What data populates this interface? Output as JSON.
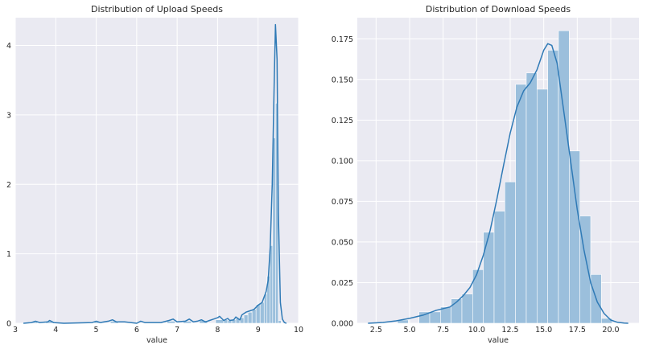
{
  "chart_data": [
    {
      "type": "histogram",
      "title": "Distribution of Upload Speeds",
      "xlabel": "value",
      "ylabel": "",
      "xlim": [
        3,
        10
      ],
      "ylim": [
        0,
        4.4
      ],
      "xticks": [
        3,
        4,
        5,
        6,
        7,
        8,
        9,
        10
      ],
      "yticks": [
        0,
        1,
        2,
        3,
        4
      ],
      "grid": true,
      "bar_color": "#9bbfdc",
      "line_color": "#2f7ab6",
      "bins": [
        {
          "x0": 3.35,
          "x1": 3.55,
          "y": 0.02
        },
        {
          "x0": 3.75,
          "x1": 3.95,
          "y": 0.03
        },
        {
          "x0": 4.95,
          "x1": 5.15,
          "y": 0.02
        },
        {
          "x0": 5.35,
          "x1": 5.55,
          "y": 0.03
        },
        {
          "x0": 6.75,
          "x1": 6.95,
          "y": 0.03
        },
        {
          "x0": 7.15,
          "x1": 7.35,
          "y": 0.03
        },
        {
          "x0": 7.55,
          "x1": 7.75,
          "y": 0.04
        },
        {
          "x0": 7.95,
          "x1": 8.15,
          "y": 0.05
        },
        {
          "x0": 8.15,
          "x1": 8.25,
          "y": 0.05
        },
        {
          "x0": 8.25,
          "x1": 8.35,
          "y": 0.04
        },
        {
          "x0": 8.35,
          "x1": 8.45,
          "y": 0.05
        },
        {
          "x0": 8.45,
          "x1": 8.55,
          "y": 0.07
        },
        {
          "x0": 8.55,
          "x1": 8.65,
          "y": 0.08
        },
        {
          "x0": 8.65,
          "x1": 8.75,
          "y": 0.12
        },
        {
          "x0": 8.75,
          "x1": 8.85,
          "y": 0.16
        },
        {
          "x0": 8.85,
          "x1": 8.95,
          "y": 0.2
        },
        {
          "x0": 8.95,
          "x1": 9.05,
          "y": 0.27
        },
        {
          "x0": 9.05,
          "x1": 9.15,
          "y": 0.3
        },
        {
          "x0": 9.15,
          "x1": 9.22,
          "y": 0.42
        },
        {
          "x0": 9.22,
          "x1": 9.29,
          "y": 0.68
        },
        {
          "x0": 9.29,
          "x1": 9.36,
          "y": 1.12
        },
        {
          "x0": 9.36,
          "x1": 9.43,
          "y": 2.67
        },
        {
          "x0": 9.43,
          "x1": 9.5,
          "y": 3.17
        },
        {
          "x0": 9.5,
          "x1": 9.57,
          "y": 0.04
        }
      ],
      "kde": {
        "x": [
          3.2,
          3.4,
          3.5,
          3.6,
          3.8,
          3.85,
          3.95,
          4.2,
          4.9,
          5.0,
          5.1,
          5.3,
          5.4,
          5.5,
          5.7,
          6.0,
          6.1,
          6.2,
          6.6,
          6.8,
          6.9,
          7.0,
          7.2,
          7.3,
          7.4,
          7.5,
          7.6,
          7.7,
          7.8,
          7.9,
          8.0,
          8.05,
          8.15,
          8.25,
          8.3,
          8.4,
          8.45,
          8.55,
          8.6,
          8.7,
          8.8,
          8.9,
          9.0,
          9.1,
          9.2,
          9.25,
          9.3,
          9.35,
          9.4,
          9.43,
          9.47,
          9.5,
          9.55,
          9.6,
          9.65,
          9.7
        ],
        "y": [
          0.0,
          0.01,
          0.03,
          0.01,
          0.02,
          0.04,
          0.01,
          0.0,
          0.01,
          0.03,
          0.01,
          0.03,
          0.05,
          0.02,
          0.02,
          0.0,
          0.03,
          0.01,
          0.01,
          0.04,
          0.06,
          0.02,
          0.03,
          0.06,
          0.02,
          0.03,
          0.05,
          0.02,
          0.04,
          0.06,
          0.08,
          0.1,
          0.04,
          0.07,
          0.04,
          0.05,
          0.09,
          0.05,
          0.12,
          0.16,
          0.18,
          0.2,
          0.26,
          0.3,
          0.46,
          0.62,
          1.1,
          2.0,
          3.5,
          4.3,
          3.8,
          1.6,
          0.3,
          0.06,
          0.01,
          0.0
        ]
      }
    },
    {
      "type": "histogram",
      "title": "Distribution of Download Speeds",
      "xlabel": "value",
      "ylabel": "",
      "xlim": [
        1.1,
        22.1
      ],
      "ylim": [
        0,
        0.188
      ],
      "xticks": [
        2.5,
        5.0,
        7.5,
        10.0,
        12.5,
        15.0,
        17.5,
        20.0
      ],
      "xtick_labels": [
        "2.5",
        "5.0",
        "7.5",
        "10.0",
        "12.5",
        "15.0",
        "17.5",
        "20.0"
      ],
      "yticks": [
        0.0,
        0.025,
        0.05,
        0.075,
        0.1,
        0.125,
        0.15,
        0.175
      ],
      "ytick_labels": [
        "0.000",
        "0.025",
        "0.050",
        "0.075",
        "0.100",
        "0.125",
        "0.150",
        "0.175"
      ],
      "grid": true,
      "bar_color": "#9bbfdc",
      "line_color": "#2f7ab6",
      "bins": [
        {
          "x0": 4.1,
          "x1": 4.9,
          "y": 0.002
        },
        {
          "x0": 4.9,
          "x1": 5.7,
          "y": 0.0
        },
        {
          "x0": 5.7,
          "x1": 6.5,
          "y": 0.007
        },
        {
          "x0": 6.5,
          "x1": 7.3,
          "y": 0.007
        },
        {
          "x0": 7.3,
          "x1": 8.1,
          "y": 0.01
        },
        {
          "x0": 8.1,
          "x1": 8.9,
          "y": 0.015
        },
        {
          "x0": 8.9,
          "x1": 9.7,
          "y": 0.018
        },
        {
          "x0": 9.7,
          "x1": 10.5,
          "y": 0.033
        },
        {
          "x0": 10.5,
          "x1": 11.3,
          "y": 0.056
        },
        {
          "x0": 11.3,
          "x1": 12.1,
          "y": 0.069
        },
        {
          "x0": 12.1,
          "x1": 12.9,
          "y": 0.087
        },
        {
          "x0": 12.9,
          "x1": 13.7,
          "y": 0.147
        },
        {
          "x0": 13.7,
          "x1": 14.5,
          "y": 0.154
        },
        {
          "x0": 14.5,
          "x1": 15.3,
          "y": 0.144
        },
        {
          "x0": 15.3,
          "x1": 16.1,
          "y": 0.168
        },
        {
          "x0": 16.1,
          "x1": 16.9,
          "y": 0.18
        },
        {
          "x0": 16.9,
          "x1": 17.7,
          "y": 0.106
        },
        {
          "x0": 17.7,
          "x1": 18.5,
          "y": 0.066
        },
        {
          "x0": 18.5,
          "x1": 19.3,
          "y": 0.03
        },
        {
          "x0": 19.3,
          "x1": 20.1,
          "y": 0.003
        }
      ],
      "kde": {
        "x": [
          1.9,
          3.0,
          4.0,
          5.0,
          6.0,
          7.0,
          7.5,
          8.0,
          8.5,
          9.0,
          9.5,
          10.0,
          10.5,
          11.0,
          11.5,
          12.0,
          12.5,
          13.0,
          13.5,
          14.0,
          14.5,
          15.0,
          15.3,
          15.6,
          16.0,
          16.5,
          17.0,
          17.5,
          18.0,
          18.5,
          19.0,
          19.5,
          20.0,
          20.5,
          21.0,
          21.3
        ],
        "y": [
          0.0,
          0.0005,
          0.0015,
          0.003,
          0.005,
          0.008,
          0.009,
          0.01,
          0.013,
          0.017,
          0.022,
          0.03,
          0.042,
          0.057,
          0.076,
          0.097,
          0.117,
          0.133,
          0.143,
          0.148,
          0.156,
          0.168,
          0.172,
          0.171,
          0.16,
          0.13,
          0.1,
          0.07,
          0.045,
          0.025,
          0.013,
          0.006,
          0.002,
          0.0006,
          0.0001,
          0.0
        ]
      }
    }
  ]
}
